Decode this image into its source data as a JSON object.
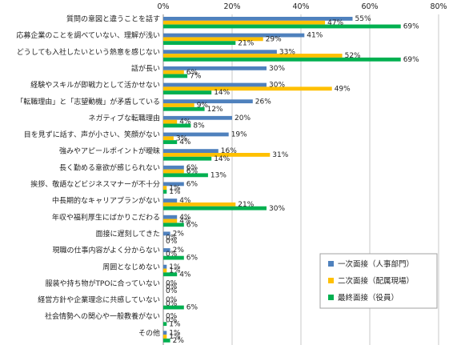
{
  "chart_data": {
    "type": "bar",
    "orientation": "horizontal",
    "xlim": [
      0,
      80
    ],
    "ticks": [
      0,
      20,
      40,
      60,
      80
    ],
    "tick_suffix": "%",
    "grid": true,
    "legend_position": "bottom-right",
    "categories": [
      "質問の意図と違うことを話す",
      "応募企業のことを調べていない、理解が浅い",
      "どうしても入社したいという熱意を感じない",
      "話が長い",
      "経験やスキルが即戦力として活かせない",
      "「転職理由」と「志望動機」が矛盾している",
      "ネガティブな転職理由",
      "目を見ずに話す、声が小さい、笑顔がない",
      "強みやアピールポイントが曖昧",
      "長く勤める意欲が感じられない",
      "挨拶、敬語などビジネスマナーが不十分",
      "中長期的なキャリアプランがない",
      "年収や福利厚生にばかりこだわる",
      "面接に遅刻してきた",
      "現職の仕事内容がよく分からない",
      "周囲となじめない",
      "服装や持ち物がTPOに合っていない",
      "経営方針や企業理念に共感していない",
      "社会情勢への関心や一般教養がない",
      "その他"
    ],
    "series": [
      {
        "name": "一次面接（人事部門）",
        "color": "#4f81bd",
        "values": [
          55,
          41,
          33,
          30,
          30,
          26,
          20,
          19,
          16,
          6,
          6,
          4,
          4,
          2,
          2,
          1,
          0,
          0,
          0,
          1
        ]
      },
      {
        "name": "二次面接（配属現場）",
        "color": "#ffc000",
        "values": [
          47,
          29,
          52,
          6,
          49,
          9,
          4,
          3,
          31,
          6,
          1,
          21,
          4,
          0,
          0,
          1,
          0,
          0,
          0,
          1
        ]
      },
      {
        "name": "最終面接（役員）",
        "color": "#00b050",
        "values": [
          69,
          21,
          69,
          7,
          14,
          12,
          8,
          4,
          14,
          13,
          1,
          30,
          6,
          0,
          6,
          4,
          0,
          6,
          1,
          2
        ]
      }
    ]
  }
}
